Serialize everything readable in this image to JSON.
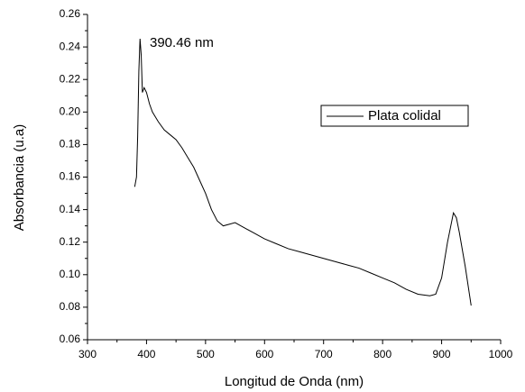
{
  "chart_data": {
    "type": "line",
    "xlabel": "Longitud de Onda (nm)",
    "ylabel": "Absorbancia (u.a)",
    "annotation": "390.46 nm",
    "legend": "upper right",
    "xlim": [
      300,
      1000
    ],
    "xticks": [
      300,
      400,
      500,
      600,
      700,
      800,
      900,
      1000
    ],
    "ylim": [
      0.06,
      0.26
    ],
    "yticks": [
      0.06,
      0.08,
      {
        "value": 0.1,
        "label": "0.10"
      },
      0.12,
      0.14,
      0.16,
      0.18,
      {
        "value": 0.2,
        "label": "0.20"
      },
      0.22,
      0.24,
      0.26
    ],
    "x": [
      380,
      383,
      385,
      387,
      389,
      391,
      393,
      396,
      400,
      405,
      410,
      420,
      430,
      440,
      450,
      460,
      470,
      480,
      490,
      500,
      510,
      520,
      530,
      540,
      550,
      560,
      570,
      580,
      600,
      620,
      640,
      660,
      680,
      700,
      720,
      740,
      760,
      780,
      800,
      820,
      840,
      860,
      880,
      890,
      900,
      910,
      920,
      925,
      930,
      940,
      950
    ],
    "series": [
      {
        "name": "Plata colidal",
        "color": "#000000",
        "values": [
          0.154,
          0.16,
          0.185,
          0.225,
          0.245,
          0.235,
          0.212,
          0.215,
          0.212,
          0.205,
          0.2,
          0.194,
          0.189,
          0.186,
          0.183,
          0.178,
          0.172,
          0.166,
          0.158,
          0.15,
          0.14,
          0.133,
          0.13,
          0.131,
          0.132,
          0.13,
          0.128,
          0.126,
          0.122,
          0.119,
          0.116,
          0.114,
          0.112,
          0.11,
          0.108,
          0.106,
          0.104,
          0.101,
          0.098,
          0.095,
          0.091,
          0.088,
          0.087,
          0.088,
          0.098,
          0.12,
          0.138,
          0.135,
          0.126,
          0.105,
          0.081
        ]
      }
    ]
  }
}
